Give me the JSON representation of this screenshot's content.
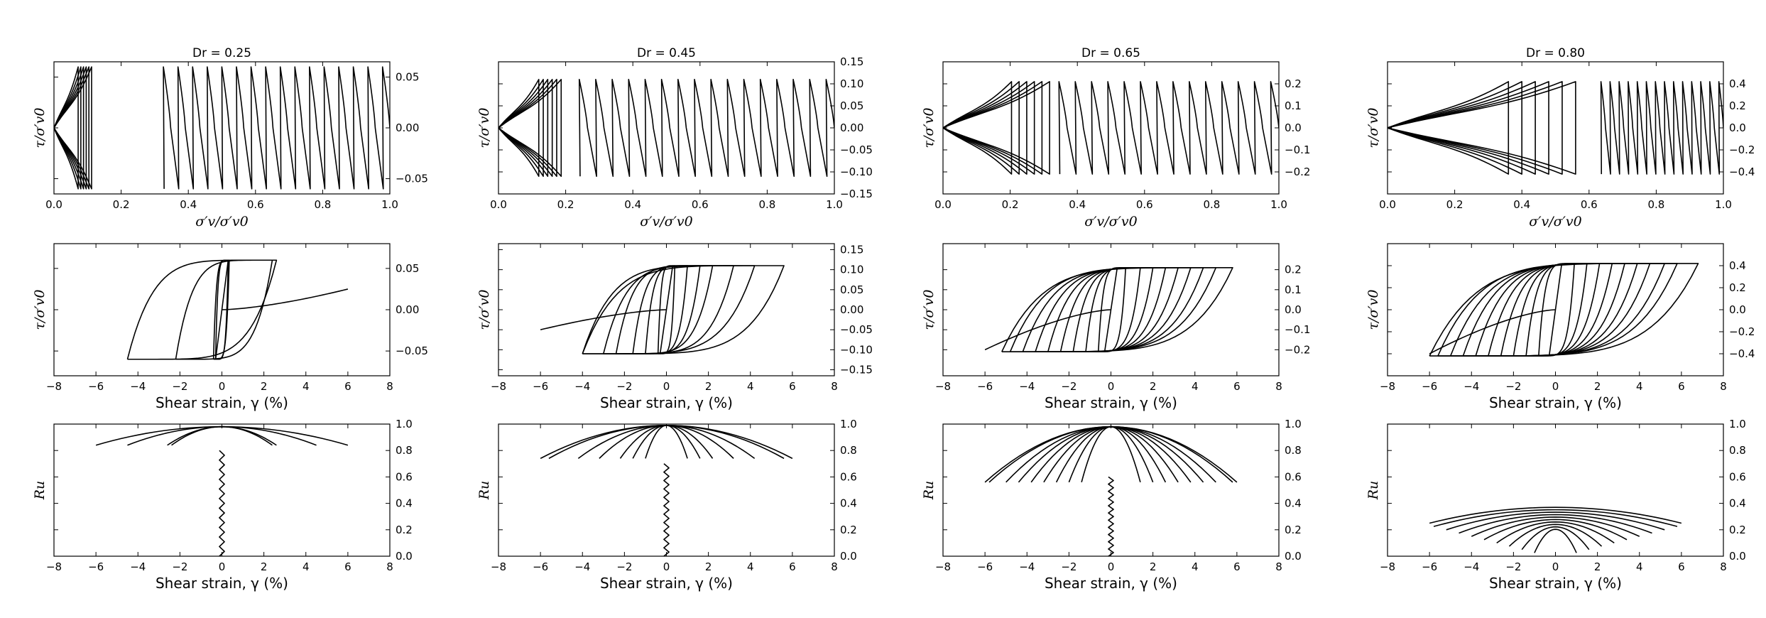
{
  "figure": {
    "column_titles": [
      "Dr = 0.25",
      "Dr = 0.45",
      "Dr = 0.65",
      "Dr = 0.80"
    ],
    "row_labels": {
      "stress_path_xlabel": "σ′v/σ′v0",
      "stress_ratio_ylabel": "τ/σ′v0",
      "strain_xlabel": "Shear strain, γ (%)",
      "pore_pressure_ylabel": "Ru"
    }
  },
  "chart_data": [
    {
      "type": "line",
      "title": "Dr = 0.25",
      "xlabel": "σ′v/σ′v0",
      "ylabel": "τ/σ′v0",
      "xlim": [
        0,
        1
      ],
      "ylim": [
        -0.065,
        0.065
      ],
      "xticks": [
        0.0,
        0.2,
        0.4,
        0.6,
        0.8,
        1.0
      ],
      "yticks": [
        -0.05,
        0.0,
        0.05
      ],
      "grid": false,
      "series": [
        {
          "key": "stress_path",
          "amp": 0.06,
          "dx": -0.0435,
          "xmin": 0.12,
          "cycles": 16
        }
      ]
    },
    {
      "type": "line",
      "title": "Dr = 0.45",
      "xlabel": "σ′v/σ′v0",
      "ylabel": "τ/σ′v0",
      "xlim": [
        0,
        1
      ],
      "ylim": [
        -0.15,
        0.15
      ],
      "xticks": [
        0.0,
        0.2,
        0.4,
        0.6,
        0.8,
        1.0
      ],
      "yticks": [
        -0.15,
        -0.1,
        -0.05,
        0.0,
        0.05,
        0.1,
        0.15
      ],
      "grid": false,
      "series": [
        {
          "key": "stress_path",
          "amp": 0.11,
          "dx": -0.049,
          "xmin": 0.2,
          "cycles": 16
        }
      ]
    },
    {
      "type": "line",
      "title": "Dr = 0.65",
      "xlabel": "σ′v/σ′v0",
      "ylabel": "τ/σ′v0",
      "xlim": [
        0,
        1
      ],
      "ylim": [
        -0.3,
        0.3
      ],
      "xticks": [
        0.0,
        0.2,
        0.4,
        0.6,
        0.8,
        1.0
      ],
      "yticks": [
        -0.2,
        -0.1,
        0.0,
        0.1,
        0.2
      ],
      "grid": false,
      "series": [
        {
          "key": "stress_path",
          "amp": 0.21,
          "dx": -0.0485,
          "xmin": 0.34,
          "cycles": 14
        }
      ]
    },
    {
      "type": "line",
      "title": "Dr = 0.80",
      "xlabel": "σ′v/σ′v0",
      "ylabel": "τ/σ′v0",
      "xlim": [
        0,
        1
      ],
      "ylim": [
        -0.6,
        0.6
      ],
      "xticks": [
        0.0,
        0.2,
        0.4,
        0.6,
        0.8,
        1.0
      ],
      "yticks": [
        -0.4,
        -0.2,
        0.0,
        0.2,
        0.4
      ],
      "grid": false,
      "series": [
        {
          "key": "stress_path",
          "amp": 0.42,
          "dx": -0.027,
          "xmin": 0.6,
          "cycles": 14
        }
      ]
    },
    {
      "type": "line",
      "xlabel": "Shear strain, γ (%)",
      "ylabel": "τ/σ′v0",
      "xlim": [
        -8,
        8
      ],
      "ylim": [
        -0.08,
        0.08
      ],
      "xticks": [
        -8,
        -6,
        -4,
        -2,
        0,
        2,
        4,
        6,
        8
      ],
      "yticks": [
        -0.05,
        0.0,
        0.05
      ],
      "grid": false,
      "series": [
        {
          "key": "stress_strain",
          "amp": 0.06,
          "loops": [
            [
              -0.3,
              0.3
            ],
            [
              -0.4,
              0.35
            ],
            [
              -2.2,
              2.4
            ],
            [
              -4.5,
              2.6
            ]
          ],
          "final_peak": 6.0,
          "final_tau": 0.025
        }
      ]
    },
    {
      "type": "line",
      "xlabel": "Shear strain, γ (%)",
      "ylabel": "τ/σ′v0",
      "xlim": [
        -8,
        8
      ],
      "ylim": [
        -0.165,
        0.165
      ],
      "xticks": [
        -8,
        -6,
        -4,
        -2,
        0,
        2,
        4,
        6,
        8
      ],
      "yticks": [
        -0.15,
        -0.1,
        -0.05,
        0.0,
        0.05,
        0.1,
        0.15
      ],
      "grid": false,
      "series": [
        {
          "key": "stress_strain",
          "amp": 0.11,
          "loops": [
            [
              -0.4,
              0.4
            ],
            [
              -1.0,
              1.0
            ],
            [
              -1.6,
              1.6
            ],
            [
              -2.4,
              2.2
            ],
            [
              -3.0,
              3.2
            ],
            [
              -4.0,
              4.2
            ],
            [
              -4.0,
              5.6
            ]
          ],
          "final_peak": -6.0,
          "final_tau": -0.05
        }
      ]
    },
    {
      "type": "line",
      "xlabel": "Shear strain, γ (%)",
      "ylabel": "τ/σ′v0",
      "xlim": [
        -8,
        8
      ],
      "ylim": [
        -0.33,
        0.33
      ],
      "xticks": [
        -8,
        -6,
        -4,
        -2,
        0,
        2,
        4,
        6,
        8
      ],
      "yticks": [
        -0.2,
        -0.1,
        0.0,
        0.1,
        0.2
      ],
      "grid": false,
      "series": [
        {
          "key": "stress_strain",
          "amp": 0.21,
          "loops": [
            [
              -0.6,
              0.7
            ],
            [
              -1.2,
              1.4
            ],
            [
              -1.8,
              2.0
            ],
            [
              -2.4,
              2.6
            ],
            [
              -3.0,
              3.2
            ],
            [
              -3.6,
              3.8
            ],
            [
              -4.2,
              4.4
            ],
            [
              -4.8,
              5.0
            ],
            [
              -5.2,
              5.8
            ]
          ],
          "final_peak": -6.0,
          "final_tau": -0.2
        }
      ]
    },
    {
      "type": "line",
      "xlabel": "Shear strain, γ (%)",
      "ylabel": "τ/σ′v0",
      "xlim": [
        -8,
        8
      ],
      "ylim": [
        -0.6,
        0.6
      ],
      "xticks": [
        -8,
        -6,
        -4,
        -2,
        0,
        2,
        4,
        6,
        8
      ],
      "yticks": [
        -0.4,
        -0.2,
        0.0,
        0.2,
        0.4
      ],
      "grid": false,
      "series": [
        {
          "key": "stress_strain",
          "amp": 0.42,
          "loops": [
            [
              -0.8,
              0.9
            ],
            [
              -1.4,
              1.5
            ],
            [
              -2.0,
              2.1
            ],
            [
              -2.6,
              2.7
            ],
            [
              -3.2,
              3.3
            ],
            [
              -3.8,
              3.9
            ],
            [
              -4.4,
              4.5
            ],
            [
              -5.0,
              5.2
            ],
            [
              -5.6,
              5.8
            ],
            [
              -6.0,
              6.8
            ]
          ],
          "final_peak": -6.0,
          "final_tau": -0.4
        }
      ]
    },
    {
      "type": "line",
      "xlabel": "Shear strain, γ (%)",
      "ylabel": "Ru",
      "xlim": [
        -8,
        8
      ],
      "ylim": [
        0,
        1
      ],
      "xticks": [
        -8,
        -6,
        -4,
        -2,
        0,
        2,
        4,
        6,
        8
      ],
      "yticks": [
        0.0,
        0.2,
        0.4,
        0.6,
        0.8,
        1.0
      ],
      "grid": false,
      "series": [
        {
          "key": "pore_pressure",
          "ru_top": 0.98,
          "ru_bottom": 0.84,
          "spread": [
            2.4,
            2.6,
            4.5,
            6.0
          ],
          "stem_top": 0.8,
          "mode": "cap"
        }
      ]
    },
    {
      "type": "line",
      "xlabel": "Shear strain, γ (%)",
      "ylabel": "Ru",
      "xlim": [
        -8,
        8
      ],
      "ylim": [
        0,
        1
      ],
      "xticks": [
        -8,
        -6,
        -4,
        -2,
        0,
        2,
        4,
        6,
        8
      ],
      "yticks": [
        0.0,
        0.2,
        0.4,
        0.6,
        0.8,
        1.0
      ],
      "grid": false,
      "series": [
        {
          "key": "pore_pressure",
          "ru_top": 0.99,
          "ru_bottom": 0.74,
          "spread": [
            1.0,
            1.6,
            2.2,
            3.2,
            4.2,
            5.6,
            6.0
          ],
          "stem_top": 0.7,
          "mode": "cap"
        }
      ]
    },
    {
      "type": "line",
      "xlabel": "Shear strain, γ (%)",
      "ylabel": "Ru",
      "xlim": [
        -8,
        8
      ],
      "ylim": [
        0,
        1
      ],
      "xticks": [
        -8,
        -6,
        -4,
        -2,
        0,
        2,
        4,
        6,
        8
      ],
      "yticks": [
        0.0,
        0.2,
        0.4,
        0.6,
        0.8,
        1.0
      ],
      "grid": false,
      "series": [
        {
          "key": "pore_pressure",
          "ru_top": 0.98,
          "ru_bottom": 0.56,
          "spread": [
            1.4,
            2.0,
            2.6,
            3.2,
            3.8,
            4.4,
            5.0,
            5.8,
            6.0
          ],
          "stem_top": 0.6,
          "mode": "cap"
        }
      ]
    },
    {
      "type": "line",
      "xlabel": "Shear strain, γ (%)",
      "ylabel": "Ru",
      "xlim": [
        -8,
        8
      ],
      "ylim": [
        0,
        1
      ],
      "xticks": [
        -8,
        -6,
        -4,
        -2,
        0,
        2,
        4,
        6,
        8
      ],
      "yticks": [
        0.0,
        0.2,
        0.4,
        0.6,
        0.8,
        1.0
      ],
      "grid": false,
      "series": [
        {
          "key": "pore_pressure",
          "ru_top": 0.37,
          "ru_bottom": 0.25,
          "spread": [
            1.0,
            1.6,
            2.2,
            2.8,
            3.4,
            4.0,
            4.6,
            5.2,
            5.8,
            6.0
          ],
          "stem_top": 0.0,
          "mode": "fan"
        }
      ]
    }
  ]
}
